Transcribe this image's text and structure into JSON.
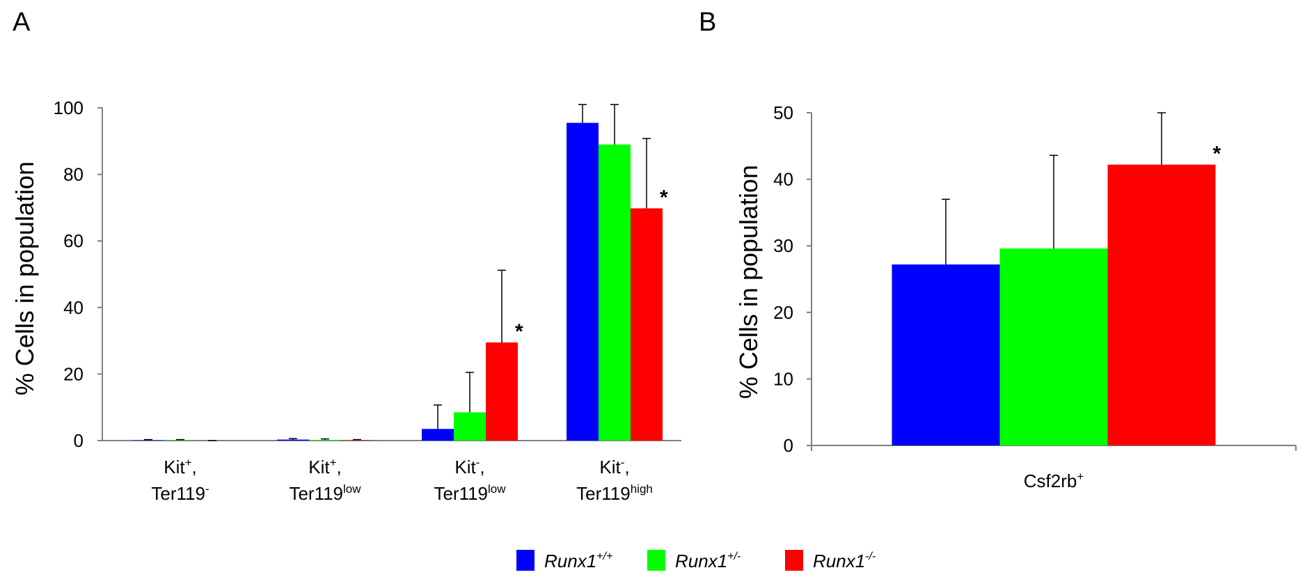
{
  "colors": {
    "wt": "#0000ff",
    "het": "#00ff00",
    "ko": "#ff0000",
    "axis": "#7f7f7f"
  },
  "legend": [
    {
      "key": "wt",
      "base": "Runx1",
      "sup": "+/+"
    },
    {
      "key": "het",
      "base": "Runx1",
      "sup": "+/-"
    },
    {
      "key": "ko",
      "base": "Runx1",
      "sup": "-/-"
    }
  ],
  "chart_data": [
    {
      "panel": "A",
      "type": "bar",
      "ylabel": "% Cells in population",
      "ylim": [
        0,
        100
      ],
      "yticks": [
        0,
        20,
        40,
        60,
        80,
        100
      ],
      "categories": [
        {
          "line1": "Kit",
          "sup1": "+",
          "line1_suffix": ",",
          "line2": "Ter119",
          "sup2": "-"
        },
        {
          "line1": "Kit",
          "sup1": "+",
          "line1_suffix": ",",
          "line2": "Ter119",
          "sup2": "low"
        },
        {
          "line1": "Kit",
          "sup1": "-",
          "line1_suffix": ",",
          "line2": "Ter119",
          "sup2": "low"
        },
        {
          "line1": "Kit",
          "sup1": "-",
          "line1_suffix": ",",
          "line2": "Ter119",
          "sup2": "high"
        }
      ],
      "series": [
        {
          "key": "wt",
          "values": [
            0.1,
            0.3,
            3.5,
            95.5
          ],
          "errors": [
            0.2,
            0.3,
            7.2,
            5.5
          ]
        },
        {
          "key": "het",
          "values": [
            0.1,
            0.2,
            8.5,
            89.0
          ],
          "errors": [
            0.2,
            0.3,
            12.0,
            12.0
          ]
        },
        {
          "key": "ko",
          "values": [
            0.0,
            0.1,
            29.5,
            69.8
          ],
          "errors": [
            0.0,
            0.2,
            21.7,
            21.0
          ]
        }
      ],
      "significance": [
        {
          "category": 2,
          "series": "ko",
          "mark": "*"
        },
        {
          "category": 3,
          "series": "ko",
          "mark": "*"
        }
      ]
    },
    {
      "panel": "B",
      "type": "bar",
      "ylabel": "% Cells in population",
      "ylim": [
        0,
        50
      ],
      "yticks": [
        0,
        10,
        20,
        30,
        40,
        50
      ],
      "categories": [
        {
          "line1": "Csf2rb",
          "sup1": "+"
        }
      ],
      "series": [
        {
          "key": "wt",
          "values": [
            27.2
          ],
          "errors": [
            9.8
          ]
        },
        {
          "key": "het",
          "values": [
            29.6
          ],
          "errors": [
            14.0
          ]
        },
        {
          "key": "ko",
          "values": [
            42.2
          ],
          "errors": [
            7.8
          ]
        }
      ],
      "significance": [
        {
          "category": 0,
          "series": "ko",
          "mark": "*"
        }
      ]
    }
  ]
}
